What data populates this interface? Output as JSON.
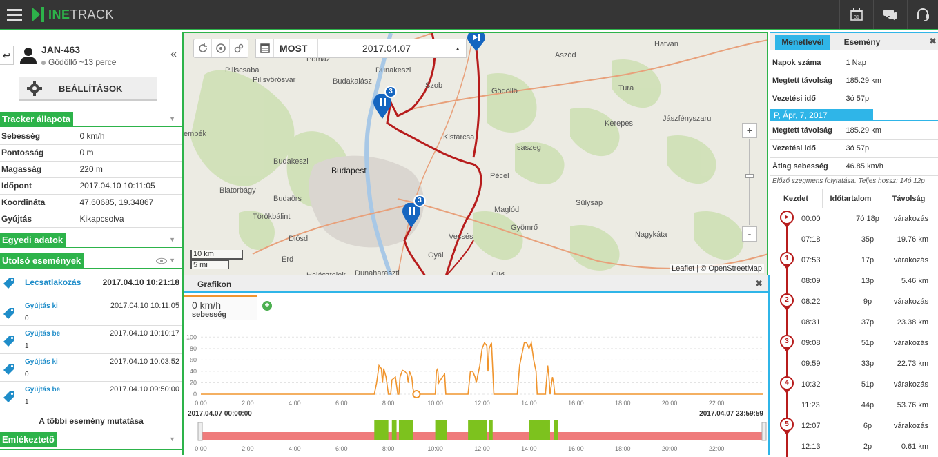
{
  "app": {
    "logo_prefix": "INE",
    "logo_suffix": "TRACK",
    "calendar_day": "31"
  },
  "vehicle": {
    "name": "JAN-463",
    "location": "Gödöllő ~13 perce",
    "settings_label": "BEÁLLÍTÁSOK"
  },
  "tracker": {
    "title": "Tracker állapota",
    "rows": [
      {
        "k": "Sebesség",
        "v": "0 km/h"
      },
      {
        "k": "Pontosság",
        "v": "0 m"
      },
      {
        "k": "Magasság",
        "v": "220 m"
      },
      {
        "k": "Időpont",
        "v": "2017.04.10 10:11:05"
      },
      {
        "k": "Koordináta",
        "v": "47.60685, 19.34867"
      },
      {
        "k": "Gyújtás",
        "v": "Kikapcsolva"
      }
    ]
  },
  "custom": {
    "title": "Egyedi adatok"
  },
  "events": {
    "title": "Utolsó események",
    "items": [
      {
        "name": "Lecsatlakozás",
        "time": "2017.04.10 10:21:18",
        "value": ""
      },
      {
        "name": "Gyújtás ki",
        "time": "2017.04.10 10:11:05",
        "value": "0"
      },
      {
        "name": "Gyújtás be",
        "time": "2017.04.10 10:10:17",
        "value": "1"
      },
      {
        "name": "Gyújtás ki",
        "time": "2017.04.10 10:03:52",
        "value": "0"
      },
      {
        "name": "Gyújtás be",
        "time": "2017.04.10 09:50:00",
        "value": "1"
      }
    ],
    "more": "A többi esemény mutatása"
  },
  "reminder": {
    "title": "Emlékeztető"
  },
  "map": {
    "mode": "MOST",
    "date": "2017.04.07",
    "attribution": "Leaflet | © OpenStreetMap",
    "scale_km": "10 km",
    "scale_mi": "5 mi",
    "zoom_in": "+",
    "zoom_out": "-",
    "places": [
      "Pomáz",
      "Dunakeszi",
      "Szob",
      "Piliscsaba",
      "Pilisvörösvár",
      "Budakalász",
      "Gödöllő",
      "Aszód",
      "Hatvan",
      "Tura",
      "Jászfényszaru",
      "Kerepes",
      "Kistarcsa",
      "Isaszeg",
      "Budakeszi",
      "Budapest",
      "Pécel",
      "Biatorbágy",
      "Budaörs",
      "Törökbálint",
      "Maglód",
      "Sülysáp",
      "Gyömrő",
      "Nagykáta",
      "Diósd",
      "Vecsés",
      "Érd",
      "Gyál",
      "Üllő",
      "Halásztelek",
      "Dunaharaszti",
      "embék"
    ],
    "marker_badges": [
      "3",
      "3"
    ]
  },
  "chart": {
    "title": "Grafikon",
    "speed_value": "0 km/h",
    "speed_label": "sebesség",
    "start_label": "2017.04.07 00:00:00",
    "end_label": "2017.04.07 23:59:59",
    "y_ticks": [
      "0",
      "20",
      "40",
      "60",
      "80",
      "100"
    ],
    "x_ticks": [
      "0:00",
      "2:00",
      "4:00",
      "6:00",
      "8:00",
      "10:00",
      "12:00",
      "14:00",
      "16:00",
      "18:00",
      "20:00",
      "22:00"
    ]
  },
  "chart_data": {
    "type": "line",
    "xlabel": "",
    "ylabel": "",
    "ylim": [
      0,
      110
    ],
    "xlim": [
      0,
      24
    ],
    "series": [
      {
        "x": [
          0,
          7.4,
          7.5,
          7.6,
          7.7,
          7.75,
          7.8,
          7.9,
          8.0,
          8.1,
          8.15,
          8.3,
          8.4,
          8.45,
          8.5,
          8.6,
          8.7,
          8.8,
          8.85,
          8.9,
          9.0,
          9.05,
          9.1,
          9.15,
          9.2,
          10.0,
          10.05,
          10.1,
          10.15,
          10.3,
          10.4,
          10.45,
          10.5,
          11.4,
          11.5,
          11.6,
          11.7,
          11.75,
          11.9,
          12.0,
          12.1,
          12.2,
          12.25,
          12.3,
          12.4,
          12.5,
          13.5,
          13.6,
          13.7,
          13.8,
          13.9,
          14.0,
          14.1,
          14.2,
          14.3,
          14.35,
          14.5,
          14.6,
          14.7,
          14.8,
          14.85,
          14.9,
          15.0,
          15.05,
          15.1,
          15.2,
          15.3,
          24
        ],
        "y": [
          0,
          0,
          20,
          50,
          45,
          20,
          45,
          30,
          0,
          0,
          25,
          30,
          0,
          0,
          30,
          42,
          40,
          35,
          20,
          40,
          30,
          10,
          0,
          0,
          0,
          0,
          40,
          45,
          20,
          30,
          35,
          0,
          0,
          0,
          40,
          40,
          30,
          20,
          50,
          80,
          90,
          85,
          40,
          80,
          90,
          0,
          0,
          50,
          70,
          90,
          90,
          80,
          90,
          60,
          40,
          0,
          0,
          0,
          0,
          50,
          30,
          0,
          30,
          20,
          0,
          0,
          0,
          0
        ]
      }
    ],
    "timeline_bars": [
      [
        7.4,
        8.0
      ],
      [
        8.15,
        8.35
      ],
      [
        8.45,
        9.05
      ],
      [
        10.0,
        10.5
      ],
      [
        11.4,
        12.2
      ],
      [
        12.3,
        12.45
      ],
      [
        14.0,
        14.9
      ],
      [
        15.05,
        15.25
      ]
    ]
  },
  "right": {
    "tab1": "Menetlevél",
    "tab2": "Esemény",
    "summary": [
      {
        "k": "Napok száma",
        "v": "1 Nap"
      },
      {
        "k": "Megtett távolság",
        "v": "185.29 km"
      },
      {
        "k": "Vezetési idő",
        "v": "3ó 57p"
      }
    ],
    "day": "P, Ápr, 7, 2017",
    "day_rows": [
      {
        "k": "Megtett távolság",
        "v": "185.29 km"
      },
      {
        "k": "Vezetési idő",
        "v": "3ó 57p"
      },
      {
        "k": "Átlag sebesség",
        "v": "46.85 km/h"
      }
    ],
    "note": "Előző szegmens folytatása. Teljes hossz: 14ó 12p",
    "headers": [
      "Kezdet",
      "Időtartalom",
      "Távolság"
    ],
    "rows": [
      {
        "pin": "▸",
        "start": "00:00",
        "dur": "7ó 18p",
        "dist": "várakozás"
      },
      {
        "pin": "",
        "start": "07:18",
        "dur": "35p",
        "dist": "19.76 km"
      },
      {
        "pin": "1",
        "start": "07:53",
        "dur": "17p",
        "dist": "várakozás"
      },
      {
        "pin": "",
        "start": "08:09",
        "dur": "13p",
        "dist": "5.46 km"
      },
      {
        "pin": "2",
        "start": "08:22",
        "dur": "9p",
        "dist": "várakozás"
      },
      {
        "pin": "",
        "start": "08:31",
        "dur": "37p",
        "dist": "23.38 km"
      },
      {
        "pin": "3",
        "start": "09:08",
        "dur": "51p",
        "dist": "várakozás"
      },
      {
        "pin": "",
        "start": "09:59",
        "dur": "33p",
        "dist": "22.73 km"
      },
      {
        "pin": "4",
        "start": "10:32",
        "dur": "51p",
        "dist": "várakozás"
      },
      {
        "pin": "",
        "start": "11:23",
        "dur": "44p",
        "dist": "53.76 km"
      },
      {
        "pin": "5",
        "start": "12:07",
        "dur": "6p",
        "dist": "várakozás"
      },
      {
        "pin": "",
        "start": "12:13",
        "dur": "2p",
        "dist": "0.61 km"
      }
    ]
  }
}
